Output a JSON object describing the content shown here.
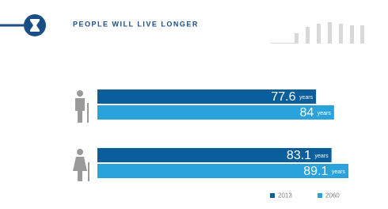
{
  "chart_data": {
    "type": "bar",
    "orientation": "horizontal",
    "title": "PEOPLE WILL LIVE LONGER",
    "categories": [
      null,
      null
    ],
    "series": [
      {
        "name": "2013",
        "color": "#0b5e9c",
        "values": [
          77.6,
          83.1
        ],
        "value_labels": [
          "77.6 years",
          "83.1 years"
        ]
      },
      {
        "name": "2060",
        "color": "#2aa2dc",
        "values": [
          84,
          89.1
        ],
        "value_labels": [
          "84 years",
          "89.1 years"
        ]
      }
    ]
  }
}
